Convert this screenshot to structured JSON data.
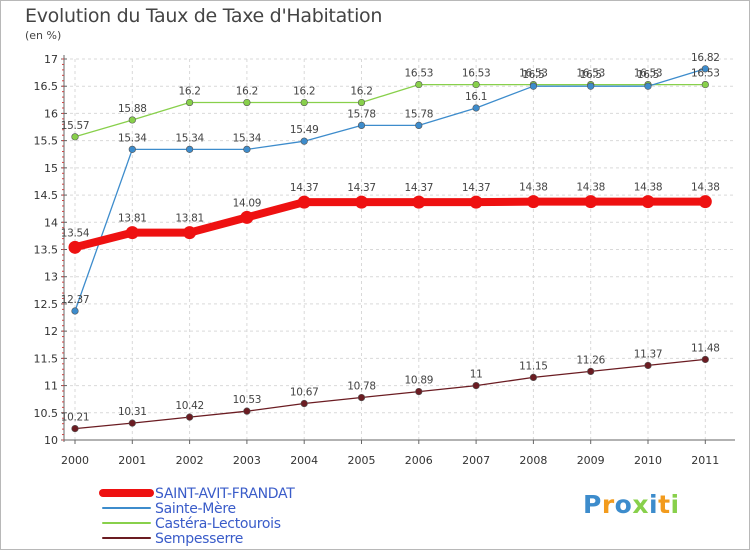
{
  "title": "Evolution du Taux de Taxe d'Habitation",
  "unit_label": "(en %)",
  "logo_text": "Proxiti",
  "colors": {
    "grid": "#d9d9d9",
    "axis": "#666666",
    "tick_label": "#333333",
    "value_label": "#444444",
    "legend_text": "#3a5cc9"
  },
  "chart_data": {
    "type": "line",
    "title": "Evolution du Taux de Taxe d'Habitation",
    "ylabel": "(en %)",
    "xlabel": "",
    "ylim": [
      10,
      17
    ],
    "y_ticks": [
      "10",
      "10.5",
      "11",
      "11.5",
      "12",
      "12.5",
      "13",
      "13.5",
      "14",
      "14.5",
      "15",
      "15.5",
      "16",
      "16.5",
      "17"
    ],
    "categories": [
      "2000",
      "2001",
      "2002",
      "2003",
      "2004",
      "2005",
      "2006",
      "2007",
      "2008",
      "2009",
      "2010",
      "2011"
    ],
    "grid": true,
    "legend_position": "bottom-left",
    "series": [
      {
        "name": "Castéra-Lectourois",
        "color": "#88d04b",
        "values": [
          15.57,
          15.88,
          16.2,
          16.2,
          16.2,
          16.2,
          16.53,
          16.53,
          16.53,
          16.53,
          16.53,
          16.53
        ],
        "labels": [
          "15.57",
          "15.88",
          "16.2",
          "16.2",
          "16.2",
          "16.2",
          "16.53",
          "16.53",
          "16.53",
          "16.53",
          "16.53",
          "16.53"
        ]
      },
      {
        "name": "Sainte-Mère",
        "color": "#3d8ccc",
        "values": [
          12.37,
          15.34,
          15.34,
          15.34,
          15.49,
          15.78,
          15.78,
          16.1,
          16.5,
          16.5,
          16.5,
          16.82
        ],
        "labels": [
          "12.37",
          "15.34",
          "15.34",
          "15.34",
          "15.49",
          "15.78",
          "15.78",
          "16.1",
          "16.5",
          "16.5",
          "16.5",
          "16.82"
        ]
      },
      {
        "name": "Sempesserre",
        "color": "#6b1c22",
        "values": [
          10.21,
          10.31,
          10.42,
          10.53,
          10.67,
          10.78,
          10.89,
          11,
          11.15,
          11.26,
          11.37,
          11.48
        ],
        "labels": [
          "10.21",
          "10.31",
          "10.42",
          "10.53",
          "10.67",
          "10.78",
          "10.89",
          "11",
          "11.15",
          "11.26",
          "11.37",
          "11.48"
        ]
      },
      {
        "name": "SAINT-AVIT-FRANDAT",
        "color": "#ee1111",
        "values": [
          13.54,
          13.81,
          13.81,
          14.09,
          14.37,
          14.37,
          14.37,
          14.37,
          14.38,
          14.38,
          14.38,
          14.38
        ],
        "labels": [
          "13.54",
          "13.81",
          "13.81",
          "14.09",
          "14.37",
          "14.37",
          "14.37",
          "14.37",
          "14.38",
          "14.38",
          "14.38",
          "14.38"
        ]
      }
    ],
    "legend": [
      "SAINT-AVIT-FRANDAT",
      "Sainte-Mère",
      "Castéra-Lectourois",
      "Sempesserre"
    ]
  }
}
